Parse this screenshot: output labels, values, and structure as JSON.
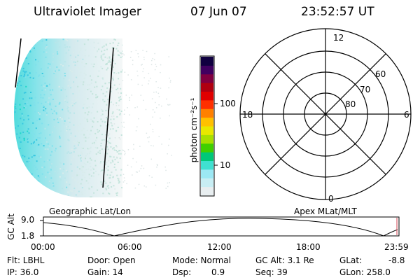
{
  "header": {
    "title": "Ultraviolet Imager",
    "date": "07 Jun 07",
    "time": "23:52:57 UT"
  },
  "colorbar": {
    "unit_label": "photon cm⁻²s⁻¹",
    "ticks": [
      "100",
      "10"
    ],
    "colors": [
      "#e8eef0",
      "#c8eef4",
      "#9ce8f4",
      "#40e0d0",
      "#00c878",
      "#40d000",
      "#a8e000",
      "#e8e800",
      "#ffc000",
      "#ff8000",
      "#ff3000",
      "#e00000",
      "#b00010",
      "#800040",
      "#400060",
      "#100040"
    ]
  },
  "polar": {
    "mlt_labels": {
      "top": "12",
      "left": "18",
      "right": "6",
      "bottom": "0"
    },
    "lat_labels": [
      "60",
      "70",
      "80"
    ]
  },
  "map_labels": {
    "left": "Geographic Lat/Lon",
    "right": "Apex MLat/MLT"
  },
  "altitude_plot": {
    "ylabel": "GC Alt",
    "yticks": [
      "9.0",
      "1.8"
    ],
    "xticks": [
      "00:00",
      "06:00",
      "12:00",
      "18:00",
      "23:59"
    ]
  },
  "info": {
    "flt": "Flt: LBHL",
    "ip": "IP: 36.0",
    "door": "Door: Open",
    "gain": "Gain: 14",
    "mode": "Mode: Normal",
    "dsp_label": "Dsp:",
    "dsp_value": "0.9",
    "gc_alt": "GC Alt: 3.1 Re",
    "seq": "Seq: 39",
    "glat": "GLat:",
    "glat_value": "-8.8",
    "glon": "GLon: 258.0"
  }
}
